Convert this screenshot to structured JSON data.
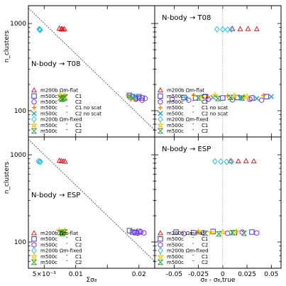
{
  "chart_data": [
    {
      "type": "scatter",
      "panel": "top-left",
      "title": "N-body → T08",
      "ylabel": "n_clusters",
      "ylog": true,
      "xlim": [
        0.0025,
        0.0225
      ],
      "ylim": [
        50,
        1600
      ],
      "xticks": [
        0.005,
        0.01,
        0.015,
        0.02
      ],
      "ytick_labels": [
        {
          "v": 100,
          "t": "100"
        },
        {
          "v": 1000,
          "t": "1000"
        }
      ],
      "guide_line": [
        [
          0.0025,
          1500
        ],
        [
          0.0225,
          60
        ]
      ],
      "series": [
        {
          "key": "m200b-flat",
          "color": "#e41a1c",
          "marker": "triangle",
          "points": [
            [
              0.0074,
              880
            ],
            [
              0.0078,
              870
            ],
            [
              0.0082,
              865
            ],
            [
              0.0077,
              860
            ],
            [
              0.008,
              855
            ]
          ]
        },
        {
          "key": "m500c-c1-flat",
          "color": "#3a3ad0",
          "marker": "square",
          "points": [
            [
              0.0185,
              150
            ],
            [
              0.019,
              145
            ],
            [
              0.0195,
              140
            ],
            [
              0.02,
              145
            ],
            [
              0.0205,
              140
            ]
          ]
        },
        {
          "key": "m500c-c2-flat",
          "color": "#8a2be2",
          "marker": "circle",
          "points": [
            [
              0.0195,
              135
            ],
            [
              0.02,
              140
            ],
            [
              0.0205,
              132
            ],
            [
              0.021,
              138
            ]
          ]
        },
        {
          "key": "m500c-c1-noscat",
          "color": "#ff8c00",
          "marker": "plus",
          "points": [
            [
              0.0183,
              150
            ],
            [
              0.0188,
              142
            ],
            [
              0.0192,
              138
            ],
            [
              0.0187,
              135
            ]
          ]
        },
        {
          "key": "m500c-c2-noscat",
          "color": "#20a8a8",
          "marker": "cross",
          "points": [
            [
              0.0186,
              145
            ],
            [
              0.0191,
              140
            ],
            [
              0.0194,
              146
            ]
          ]
        },
        {
          "key": "m200b-fixed",
          "color": "#20c0e0",
          "marker": "diamond",
          "points": [
            [
              0.0042,
              860
            ],
            [
              0.0043,
              850
            ],
            [
              0.0044,
              845
            ]
          ]
        },
        {
          "key": "m500c-c1-fixed",
          "color": "#f0c000",
          "marker": "star",
          "points": [
            [
              0.0075,
              150
            ],
            [
              0.0077,
              145
            ],
            [
              0.0079,
              140
            ],
            [
              0.0081,
              145
            ],
            [
              0.0083,
              148
            ]
          ]
        },
        {
          "key": "m500c-c2-fixed",
          "color": "#30a030",
          "marker": "hourglass",
          "points": [
            [
              0.0076,
              140
            ],
            [
              0.0078,
              135
            ],
            [
              0.008,
              138
            ],
            [
              0.0082,
              142
            ]
          ]
        }
      ]
    },
    {
      "type": "scatter",
      "panel": "top-right",
      "title": "N-body → T08",
      "ylog": true,
      "xlim": [
        -0.07,
        0.06
      ],
      "ylim": [
        50,
        1600
      ],
      "xticks": [
        -0.05,
        -0.025,
        0,
        0.025,
        0.05
      ],
      "series": [
        {
          "key": "m200b-flat",
          "color": "#e41a1c",
          "marker": "triangle",
          "points": [
            [
              0.01,
              870
            ],
            [
              0.018,
              865
            ],
            [
              0.026,
              870
            ],
            [
              0.035,
              865
            ]
          ]
        },
        {
          "key": "m500c-c1-flat",
          "color": "#3a3ad0",
          "marker": "square",
          "points": [
            [
              -0.04,
              142
            ],
            [
              -0.028,
              140
            ],
            [
              -0.018,
              145
            ],
            [
              0.0,
              140
            ],
            [
              0.015,
              142
            ],
            [
              0.03,
              140
            ],
            [
              0.045,
              145
            ]
          ]
        },
        {
          "key": "m500c-c2-flat",
          "color": "#8a2be2",
          "marker": "circle",
          "points": [
            [
              -0.052,
              135
            ],
            [
              -0.035,
              132
            ],
            [
              -0.015,
              135
            ],
            [
              0.01,
              133
            ],
            [
              0.028,
              135
            ],
            [
              0.04,
              132
            ]
          ]
        },
        {
          "key": "m500c-c1-noscat",
          "color": "#ff8c00",
          "marker": "plus",
          "points": [
            [
              -0.03,
              150
            ],
            [
              -0.015,
              145
            ],
            [
              0.005,
              148
            ],
            [
              0.022,
              146
            ],
            [
              0.042,
              150
            ]
          ]
        },
        {
          "key": "m500c-c2-noscat",
          "color": "#20a8a8",
          "marker": "cross",
          "points": [
            [
              -0.038,
              138
            ],
            [
              -0.01,
              142
            ],
            [
              0.018,
              140
            ],
            [
              0.035,
              138
            ],
            [
              0.05,
              145
            ]
          ]
        },
        {
          "key": "m200b-fixed",
          "color": "#20c0e0",
          "marker": "diamond",
          "points": [
            [
              -0.006,
              860
            ],
            [
              0.0,
              855
            ],
            [
              0.005,
              850
            ],
            [
              0.009,
              860
            ]
          ]
        },
        {
          "key": "m500c-c1-fixed",
          "color": "#f0c000",
          "marker": "star",
          "points": [
            [
              -0.022,
              145
            ],
            [
              -0.008,
              150
            ],
            [
              0.012,
              148
            ],
            [
              0.025,
              145
            ]
          ]
        },
        {
          "key": "m500c-c2-fixed",
          "color": "#30a030",
          "marker": "hourglass",
          "points": [
            [
              -0.025,
              140
            ],
            [
              -0.005,
              138
            ],
            [
              0.008,
              142
            ],
            [
              0.02,
              140
            ]
          ]
        }
      ]
    },
    {
      "type": "scatter",
      "panel": "bottom-left",
      "title": "N-body → ESP",
      "ylabel": "n_clusters",
      "xlabel": "Σσ₈",
      "ylog": true,
      "xlim": [
        0.0025,
        0.0225
      ],
      "ylim": [
        50,
        1600
      ],
      "xticks": [
        0.005,
        0.01,
        0.015,
        0.02
      ],
      "xtick_labels": [
        {
          "v": 0.005,
          "t": "5×10⁻³"
        },
        {
          "v": 0.01,
          "t": "0.01"
        },
        {
          "v": 0.02,
          "t": "0.02"
        }
      ],
      "ytick_labels": [
        {
          "v": 100,
          "t": "100"
        },
        {
          "v": 1000,
          "t": "1000"
        }
      ],
      "guide_line": [
        [
          0.0025,
          1500
        ],
        [
          0.0225,
          60
        ]
      ],
      "series": [
        {
          "key": "m200b-flat",
          "color": "#e41a1c",
          "marker": "triangle",
          "points": [
            [
              0.0074,
              860
            ],
            [
              0.0077,
              850
            ],
            [
              0.008,
              845
            ],
            [
              0.0083,
              840
            ]
          ]
        },
        {
          "key": "m500c-c1-flat",
          "color": "#3a3ad0",
          "marker": "square",
          "points": [
            [
              0.0185,
              135
            ],
            [
              0.019,
              130
            ],
            [
              0.0195,
              128
            ],
            [
              0.02,
              132
            ]
          ]
        },
        {
          "key": "m500c-c2-flat",
          "color": "#8a2be2",
          "marker": "circle",
          "points": [
            [
              0.0193,
              130
            ],
            [
              0.0198,
              126
            ],
            [
              0.0203,
              130
            ],
            [
              0.0208,
              127
            ]
          ]
        },
        {
          "key": "m200b-fixed",
          "color": "#20c0e0",
          "marker": "diamond",
          "points": [
            [
              0.0041,
              845
            ],
            [
              0.0043,
              835
            ],
            [
              0.0044,
              830
            ]
          ]
        },
        {
          "key": "m500c-c1-fixed",
          "color": "#f0c000",
          "marker": "star",
          "points": [
            [
              0.0074,
              135
            ],
            [
              0.0077,
              130
            ],
            [
              0.008,
              128
            ],
            [
              0.0083,
              134
            ]
          ]
        },
        {
          "key": "m500c-c2-fixed",
          "color": "#30a030",
          "marker": "hourglass",
          "points": [
            [
              0.0076,
              128
            ],
            [
              0.0079,
              125
            ],
            [
              0.0082,
              130
            ]
          ]
        }
      ]
    },
    {
      "type": "scatter",
      "panel": "bottom-right",
      "title": "N-body → ESP",
      "xlabel": "σ₈ - σ₈,true",
      "ylog": true,
      "xlim": [
        -0.07,
        0.06
      ],
      "ylim": [
        50,
        1600
      ],
      "xticks": [
        -0.05,
        -0.025,
        0,
        0.025,
        0.05
      ],
      "xtick_labels": [
        {
          "v": -0.05,
          "t": "-0.05"
        },
        {
          "v": -0.025,
          "t": "-0.025"
        },
        {
          "v": 0,
          "t": "0"
        },
        {
          "v": 0.025,
          "t": "0.025"
        },
        {
          "v": 0.05,
          "t": "0.05"
        }
      ],
      "series": [
        {
          "key": "m200b-flat",
          "color": "#e41a1c",
          "marker": "triangle",
          "points": [
            [
              0.008,
              850
            ],
            [
              0.016,
              845
            ],
            [
              0.024,
              850
            ],
            [
              0.032,
              845
            ]
          ]
        },
        {
          "key": "m500c-c1-flat",
          "color": "#3a3ad0",
          "marker": "square",
          "points": [
            [
              -0.048,
              130
            ],
            [
              -0.03,
              128
            ],
            [
              -0.01,
              132
            ],
            [
              0.012,
              128
            ],
            [
              0.03,
              130
            ]
          ]
        },
        {
          "key": "m500c-c2-flat",
          "color": "#8a2be2",
          "marker": "circle",
          "points": [
            [
              -0.04,
              125
            ],
            [
              -0.02,
              128
            ],
            [
              0.005,
              126
            ],
            [
              0.02,
              130
            ],
            [
              0.035,
              127
            ]
          ]
        },
        {
          "key": "m200b-fixed",
          "color": "#20c0e0",
          "marker": "diamond",
          "points": [
            [
              -0.008,
              840
            ],
            [
              -0.002,
              835
            ],
            [
              0.004,
              830
            ],
            [
              0.009,
              838
            ]
          ]
        },
        {
          "key": "m500c-c1-fixed",
          "color": "#f0c000",
          "marker": "star",
          "points": [
            [
              -0.025,
              132
            ],
            [
              -0.012,
              128
            ],
            [
              0.0,
              130
            ],
            [
              0.014,
              132
            ]
          ]
        },
        {
          "key": "m500c-c2-fixed",
          "color": "#30a030",
          "marker": "hourglass",
          "points": [
            [
              -0.018,
              126
            ],
            [
              -0.004,
              124
            ],
            [
              0.01,
              128
            ],
            [
              0.022,
              126
            ]
          ]
        }
      ]
    }
  ],
  "legend_top": [
    {
      "key": "m200b-flat",
      "col1": "m200b Ωm-flat",
      "col2": "",
      "col3": ""
    },
    {
      "key": "m500c-c1-flat",
      "col1": "m500c",
      "col2": "″",
      "col3": "C1"
    },
    {
      "key": "m500c-c2-flat",
      "col1": "m500c",
      "col2": "″",
      "col3": "C2"
    },
    {
      "key": "m500c-c1-noscat",
      "col1": "m500c",
      "col2": "″",
      "col3": "C1 no scat"
    },
    {
      "key": "m500c-c2-noscat",
      "col1": "m500c",
      "col2": "″",
      "col3": "C2 no scat"
    },
    {
      "key": "m200b-fixed",
      "col1": "m200b Ωm-fixed",
      "col2": "",
      "col3": ""
    },
    {
      "key": "m500c-c1-fixed",
      "col1": "m500c",
      "col2": "″",
      "col3": "C1"
    },
    {
      "key": "m500c-c2-fixed",
      "col1": "m500c",
      "col2": "″",
      "col3": "C2"
    }
  ],
  "legend_bottom": [
    {
      "key": "m200b-flat",
      "col1": "m200b Ωm-flat",
      "col2": "",
      "col3": ""
    },
    {
      "key": "m500c-c1-flat",
      "col1": "m500c",
      "col2": "″",
      "col3": "C1"
    },
    {
      "key": "m500c-c2-flat",
      "col1": "m500c",
      "col2": "″",
      "col3": "C2"
    },
    {
      "key": "m200b-fixed",
      "col1": "m200b Ωm-fixed",
      "col2": "",
      "col3": ""
    },
    {
      "key": "m500c-c1-fixed",
      "col1": "m500c",
      "col2": "″",
      "col3": "C1"
    },
    {
      "key": "m500c-c2-fixed",
      "col1": "m500c",
      "col2": "″",
      "col3": "C2"
    }
  ]
}
